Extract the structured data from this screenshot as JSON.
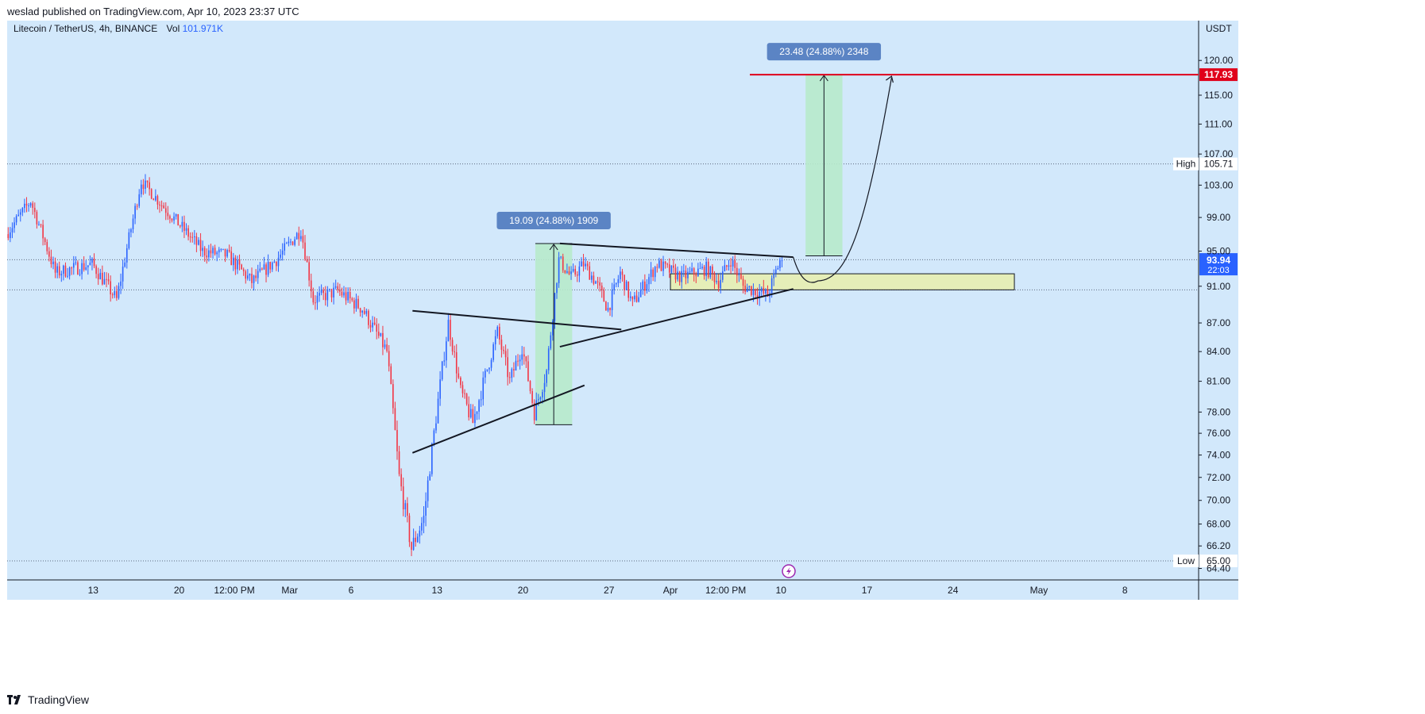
{
  "header": {
    "published": "weslad published on TradingView.com, Apr 10, 2023 23:37 UTC"
  },
  "footer": {
    "brand": "TradingView"
  },
  "colors": {
    "background": "#d2e8fb",
    "up_candle": "#2962ff",
    "down_candle": "#f23645",
    "target_line": "#e0001a",
    "measure_zone": "#b7eacb",
    "support_zone": "#e5eeb8",
    "label_box": "#5b84c4"
  },
  "chart_data": {
    "type": "candlestick",
    "symbol_line": "Litecoin / TetherUS, 4h, BINANCE",
    "volume_label": "Vol",
    "volume_value": "101.971K",
    "currency": "USDT",
    "x_axis": {
      "ticks": [
        "13",
        "20",
        "12:00 PM",
        "Mar",
        "6",
        "13",
        "20",
        "27",
        "Apr",
        "12:00 PM",
        "10",
        "17",
        "24",
        "May",
        "8"
      ],
      "range": [
        "2023-02-06",
        "2023-05-14"
      ]
    },
    "y_axis": {
      "ticks": [
        120.0,
        115.0,
        111.0,
        107.0,
        103.0,
        99.0,
        95.0,
        91.0,
        87.0,
        84.0,
        81.0,
        78.0,
        76.0,
        74.0,
        72.0,
        70.0,
        68.0,
        66.2,
        64.4
      ],
      "tick_labels": [
        "120.00",
        "115.00",
        "111.00",
        "107.00",
        "103.00",
        "99.00",
        "95.00",
        "91.00",
        "87.00",
        "84.00",
        "81.00",
        "78.00",
        "76.00",
        "74.00",
        "72.00",
        "70.00",
        "68.00",
        "66.20",
        "64.40"
      ],
      "range": [
        63.5,
        126.0
      ]
    },
    "price_path": [
      {
        "date": "2023-02-06",
        "price": 97.0
      },
      {
        "date": "2023-02-08",
        "price": 101.0
      },
      {
        "date": "2023-02-10",
        "price": 92.5
      },
      {
        "date": "2023-02-13",
        "price": 93.5
      },
      {
        "date": "2023-02-15",
        "price": 89.5
      },
      {
        "date": "2023-02-17",
        "price": 103.5
      },
      {
        "date": "2023-02-19",
        "price": 100.0
      },
      {
        "date": "2023-02-22",
        "price": 95.0
      },
      {
        "date": "2023-02-24",
        "price": 94.5
      },
      {
        "date": "2023-02-26",
        "price": 91.5
      },
      {
        "date": "2023-02-28",
        "price": 94.0
      },
      {
        "date": "2023-03-02",
        "price": 97.5
      },
      {
        "date": "2023-03-03",
        "price": 89.5
      },
      {
        "date": "2023-03-05",
        "price": 90.5
      },
      {
        "date": "2023-03-07",
        "price": 88.5
      },
      {
        "date": "2023-03-09",
        "price": 84.0
      },
      {
        "date": "2023-03-10",
        "price": 72.0
      },
      {
        "date": "2023-03-11",
        "price": 66.0
      },
      {
        "date": "2023-03-12",
        "price": 68.5
      },
      {
        "date": "2023-03-13",
        "price": 77.5
      },
      {
        "date": "2023-03-14",
        "price": 87.0
      },
      {
        "date": "2023-03-15",
        "price": 80.0
      },
      {
        "date": "2023-03-16",
        "price": 77.0
      },
      {
        "date": "2023-03-18",
        "price": 86.0
      },
      {
        "date": "2023-03-19",
        "price": 81.0
      },
      {
        "date": "2023-03-20",
        "price": 84.5
      },
      {
        "date": "2023-03-21",
        "price": 78.0
      },
      {
        "date": "2023-03-22",
        "price": 82.0
      },
      {
        "date": "2023-03-23",
        "price": 94.0
      },
      {
        "date": "2023-03-24",
        "price": 92.0
      },
      {
        "date": "2023-03-25",
        "price": 93.5
      },
      {
        "date": "2023-03-26",
        "price": 91.5
      },
      {
        "date": "2023-03-27",
        "price": 88.5
      },
      {
        "date": "2023-03-28",
        "price": 92.5
      },
      {
        "date": "2023-03-29",
        "price": 89.0
      },
      {
        "date": "2023-03-31",
        "price": 93.5
      },
      {
        "date": "2023-04-02",
        "price": 92.0
      },
      {
        "date": "2023-04-04",
        "price": 93.0
      },
      {
        "date": "2023-04-05",
        "price": 91.5
      },
      {
        "date": "2023-04-06",
        "price": 94.0
      },
      {
        "date": "2023-04-07",
        "price": 91.0
      },
      {
        "date": "2023-04-09",
        "price": 90.0
      },
      {
        "date": "2023-04-10",
        "price": 93.94
      }
    ],
    "price_levels": [
      {
        "label": "High",
        "value": 105.71,
        "text": "105.71"
      },
      {
        "label": "Low",
        "value": 65.0,
        "text": "65.00"
      }
    ],
    "reference_levels": [
      94.0,
      90.6
    ],
    "current_price": {
      "value": 93.94,
      "text": "93.94",
      "countdown": "22:03"
    },
    "target": {
      "value": 117.93,
      "text": "117.93"
    },
    "measurements": [
      {
        "label": "19.09 (24.88%) 1909",
        "from_date": "2023-03-21",
        "to_date": "2023-03-24",
        "low": 76.8,
        "high": 95.89
      },
      {
        "label": "23.48 (24.88%) 2348",
        "from_date": "2023-04-12",
        "to_date": "2023-04-15",
        "low": 94.45,
        "high": 117.93
      }
    ],
    "support_zone": {
      "from_date": "2023-04-01",
      "to_date": "2023-04-29",
      "low": 90.6,
      "high": 92.4
    },
    "trendlines": [
      {
        "from": {
          "date": "2023-03-11",
          "price": 74.2
        },
        "to": {
          "date": "2023-03-25",
          "price": 80.6
        }
      },
      {
        "from": {
          "date": "2023-03-11",
          "price": 88.3
        },
        "to": {
          "date": "2023-03-28",
          "price": 86.3
        }
      },
      {
        "from": {
          "date": "2023-03-23",
          "price": 84.5
        },
        "to": {
          "date": "2023-04-11",
          "price": 90.7
        }
      },
      {
        "from": {
          "date": "2023-03-23",
          "price": 95.9
        },
        "to": {
          "date": "2023-04-11",
          "price": 94.3
        }
      }
    ],
    "projection_path": [
      {
        "date": "2023-04-11",
        "price": 94.3
      },
      {
        "date": "2023-04-13",
        "price": 91.6
      },
      {
        "date": "2023-04-17",
        "price": 99.0
      },
      {
        "date": "2023-04-19",
        "price": 117.93
      }
    ]
  }
}
